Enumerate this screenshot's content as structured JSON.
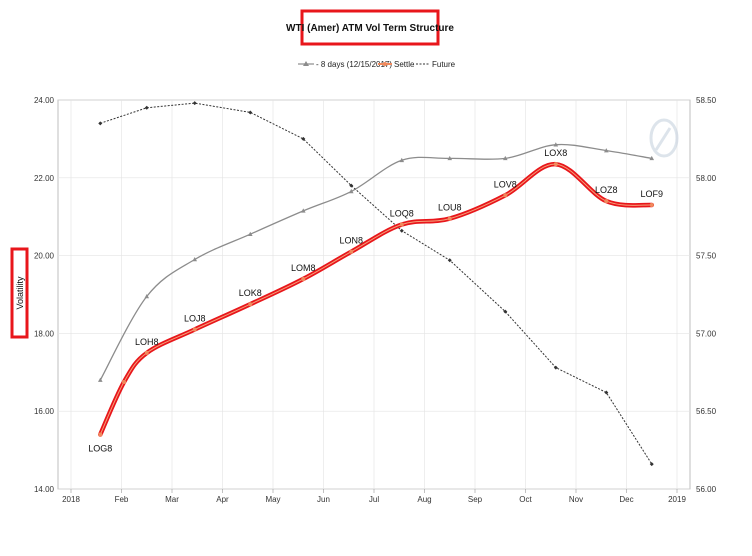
{
  "chart_data": {
    "type": "line",
    "title": "WTI (Amer) ATM Vol Term Structure",
    "ylabel": "Volatility",
    "xlabel": "",
    "x_ticks": [
      "2018",
      "Feb",
      "Mar",
      "Apr",
      "May",
      "Jun",
      "Jul",
      "Aug",
      "Sep",
      "Oct",
      "Nov",
      "Dec",
      "2019"
    ],
    "ylim": [
      14,
      24
    ],
    "y_ticks": [
      "14.00",
      "16.00",
      "18.00",
      "20.00",
      "22.00",
      "24.00"
    ],
    "y2lim": [
      56,
      58.5
    ],
    "y2_ticks": [
      "56.00",
      "56.50",
      "57.00",
      "57.50",
      "58.00",
      "58.50"
    ],
    "grid": true,
    "legend_position": "top-center",
    "series": [
      {
        "name": "- 8 days (12/15/2017)",
        "axis": "left",
        "color": "#8c8c8c",
        "marker": "triangle",
        "points": [
          [
            0.58,
            16.8
          ],
          [
            1.5,
            18.95
          ],
          [
            2.45,
            19.9
          ],
          [
            3.55,
            20.55
          ],
          [
            4.6,
            21.15
          ],
          [
            5.55,
            21.65
          ],
          [
            6.55,
            22.45
          ],
          [
            7.5,
            22.5
          ],
          [
            8.6,
            22.5
          ],
          [
            9.6,
            22.85
          ],
          [
            10.6,
            22.7
          ],
          [
            11.5,
            22.5
          ]
        ]
      },
      {
        "name": "Settle",
        "axis": "left",
        "color": "#e8161b",
        "marker": "circle",
        "points": [
          [
            0.58,
            15.4
          ],
          [
            1.05,
            16.75
          ],
          [
            1.5,
            17.5
          ],
          [
            2.45,
            18.1
          ],
          [
            3.55,
            18.75
          ],
          [
            4.6,
            19.4
          ],
          [
            5.55,
            20.1
          ],
          [
            6.55,
            20.8
          ],
          [
            7.5,
            20.95
          ],
          [
            8.6,
            21.55
          ],
          [
            9.6,
            22.35
          ],
          [
            10.6,
            21.4
          ],
          [
            11.5,
            21.3
          ]
        ],
        "point_labels": [
          "LOG8",
          "",
          "LOH8",
          "LOJ8",
          "LOK8",
          "LOM8",
          "LON8",
          "LOQ8",
          "LOU8",
          "LOV8",
          "LOX8",
          "LOZ8",
          "LOF9"
        ]
      },
      {
        "name": "Future",
        "axis": "right",
        "color": "#333333",
        "marker": "diamond",
        "points": [
          [
            0.58,
            58.35
          ],
          [
            1.5,
            58.45
          ],
          [
            2.45,
            58.48
          ],
          [
            3.55,
            58.42
          ],
          [
            4.6,
            58.25
          ],
          [
            5.55,
            57.95
          ],
          [
            6.55,
            57.66
          ],
          [
            7.5,
            57.47
          ],
          [
            8.6,
            57.14
          ],
          [
            9.6,
            56.78
          ],
          [
            10.6,
            56.62
          ],
          [
            11.5,
            56.16
          ]
        ]
      }
    ]
  }
}
